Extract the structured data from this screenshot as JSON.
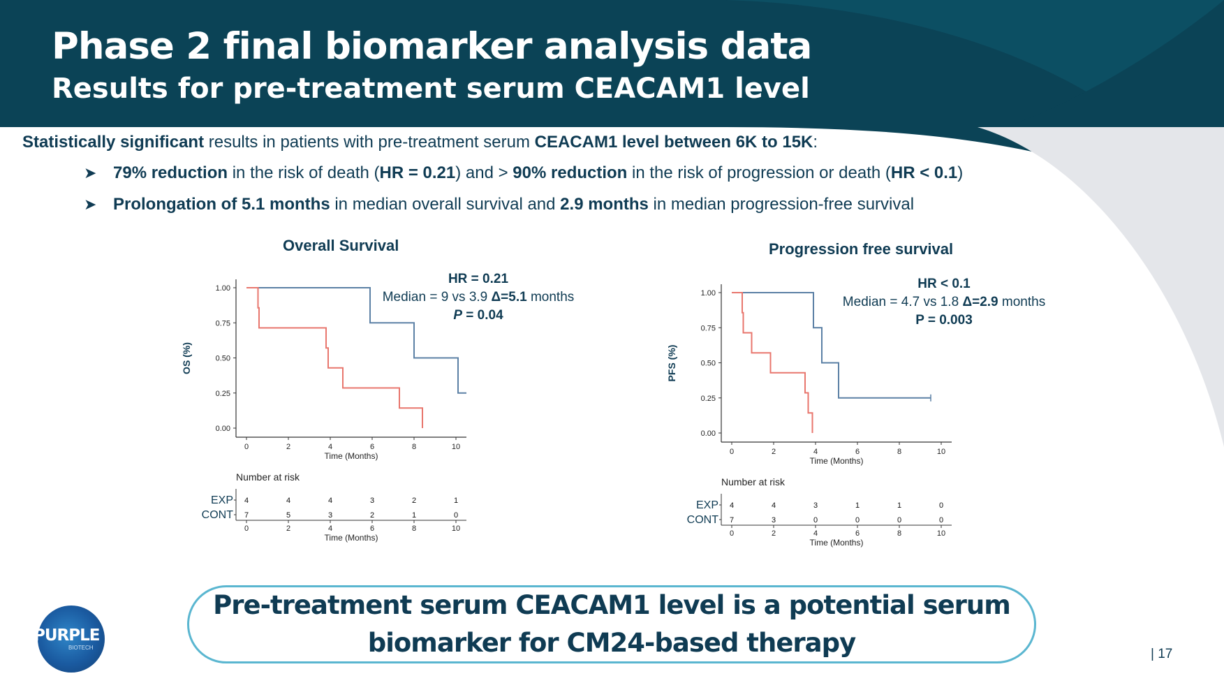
{
  "header": {
    "title": "Phase 2 final biomarker analysis data",
    "subtitle": "Results for pre-treatment serum CEACAM1 level"
  },
  "intro": {
    "bold1": "Statistically significant",
    "text1": " results in patients with pre-treatment serum ",
    "bold2": "CEACAM1 level between 6K to 15K",
    "text2": ":"
  },
  "bullets": [
    {
      "b1": "79% reduction",
      "t1": " in the risk of death (",
      "b2": "HR = 0.21",
      "t2": ") and > ",
      "b3": "90% reduction",
      "t3": " in the risk of progression or death (",
      "b4": "HR < 0.1",
      "t4": ")"
    },
    {
      "b1": "Prolongation of 5.1 months",
      "t1": " in median overall survival and ",
      "b2": "2.9 months",
      "t2": " in median progression-free survival",
      "b3": "",
      "t3": "",
      "b4": "",
      "t4": ""
    }
  ],
  "os_stats": {
    "hr": "HR = 0.21",
    "median_prefix": "Median = 9 vs 3.9 ",
    "delta": "Δ=5.1",
    "median_suffix": " months",
    "p_label": "P",
    "p_value": " = 0.04"
  },
  "pfs_stats": {
    "hr": "HR < 0.1",
    "median_prefix": "Median = 4.7 vs 1.8 ",
    "delta": "Δ=2.9",
    "median_suffix": " months",
    "p_label": "P",
    "p_value": " = 0.003"
  },
  "colors": {
    "exp": "#5b80a5",
    "cont": "#e8766d",
    "header": "#0b4356",
    "accent": "#5ab6d0"
  },
  "chart_data": [
    {
      "type": "line",
      "title": "Overall Survival",
      "xlabel": "Time (Months)",
      "ylabel": "OS (%)",
      "xlim": [
        0,
        10
      ],
      "ylim": [
        0,
        1
      ],
      "x_ticks": [
        "0",
        "2",
        "4",
        "6",
        "8",
        "10"
      ],
      "y_ticks": [
        "0.00",
        "0.25",
        "0.50",
        "0.75",
        "1.00"
      ],
      "series": [
        {
          "name": "EXP",
          "color": "#5b80a5",
          "x": [
            0,
            5.9,
            5.9,
            8.0,
            8.0,
            10.1,
            10.1,
            10.5
          ],
          "y": [
            1.0,
            1.0,
            0.75,
            0.75,
            0.5,
            0.5,
            0.25,
            0.25
          ]
        },
        {
          "name": "CONT",
          "color": "#e8766d",
          "x": [
            0,
            0.55,
            0.55,
            0.6,
            0.6,
            3.8,
            3.8,
            3.9,
            3.9,
            4.6,
            4.6,
            7.3,
            7.3,
            8.4,
            8.4
          ],
          "y": [
            1.0,
            1.0,
            0.857,
            0.857,
            0.714,
            0.714,
            0.571,
            0.571,
            0.429,
            0.429,
            0.286,
            0.286,
            0.143,
            0.143,
            0.0
          ]
        }
      ],
      "risk_table": {
        "title": "Number at risk",
        "xlabel": "Time (Months)",
        "x_ticks": [
          "0",
          "2",
          "4",
          "6",
          "8",
          "10"
        ],
        "rows": [
          {
            "label": "EXP",
            "values": [
              "4",
              "4",
              "4",
              "3",
              "2",
              "1"
            ]
          },
          {
            "label": "CONT",
            "values": [
              "7",
              "5",
              "3",
              "2",
              "1",
              "0"
            ]
          }
        ]
      }
    },
    {
      "type": "line",
      "title": "Progression free survival",
      "xlabel": "Time (Months)",
      "ylabel": "PFS (%)",
      "xlim": [
        0,
        10
      ],
      "ylim": [
        0,
        1
      ],
      "x_ticks": [
        "0",
        "2",
        "4",
        "6",
        "8",
        "10"
      ],
      "y_ticks": [
        "0.00",
        "0.25",
        "0.50",
        "0.75",
        "1.00"
      ],
      "series": [
        {
          "name": "EXP",
          "color": "#5b80a5",
          "x": [
            0,
            3.9,
            3.9,
            4.3,
            4.3,
            5.1,
            5.1,
            9.5
          ],
          "y": [
            1.0,
            1.0,
            0.75,
            0.75,
            0.5,
            0.5,
            0.25,
            0.25
          ],
          "censored": [
            [
              9.5,
              0.25
            ]
          ]
        },
        {
          "name": "CONT",
          "color": "#e8766d",
          "x": [
            0,
            0.5,
            0.5,
            0.55,
            0.55,
            0.95,
            0.95,
            1.85,
            1.85,
            3.5,
            3.5,
            3.65,
            3.65,
            3.85,
            3.85
          ],
          "y": [
            1.0,
            1.0,
            0.857,
            0.857,
            0.714,
            0.714,
            0.571,
            0.571,
            0.429,
            0.429,
            0.286,
            0.286,
            0.143,
            0.143,
            0.0
          ]
        }
      ],
      "risk_table": {
        "title": "Number at risk",
        "xlabel": "Time (Months)",
        "x_ticks": [
          "0",
          "2",
          "4",
          "6",
          "8",
          "10"
        ],
        "rows": [
          {
            "label": "EXP",
            "values": [
              "4",
              "4",
              "3",
              "1",
              "1",
              "0"
            ]
          },
          {
            "label": "CONT",
            "values": [
              "7",
              "3",
              "0",
              "0",
              "0",
              "0"
            ]
          }
        ]
      }
    }
  ],
  "conclusion": {
    "line1": "Pre-treatment serum CEACAM1 level is a potential serum",
    "line2": "biomarker for CM24-based therapy"
  },
  "logo": {
    "name": "PURPLE",
    "tagline": "BIOTECH"
  },
  "page_number": "| 17"
}
